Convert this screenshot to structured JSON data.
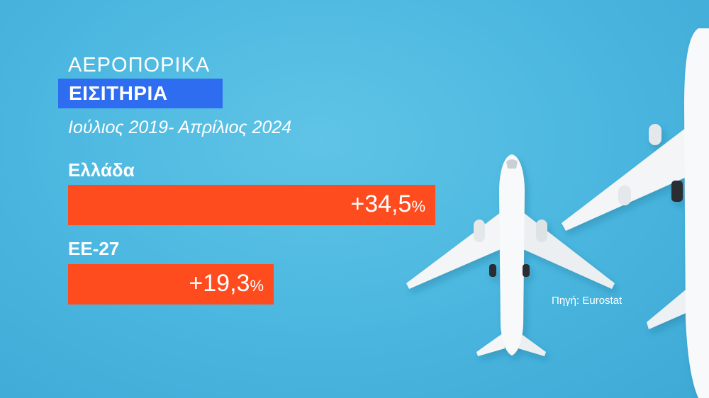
{
  "header": {
    "line1": "ΑΕΡΟΠΟΡΙΚΑ",
    "line2": "ΕΙΣΙΤΗΡΙΑ",
    "period": "Ιούλιος 2019- Απρίλιος 2024"
  },
  "chart_data": {
    "type": "bar",
    "orientation": "horizontal",
    "categories": [
      "Ελλάδα",
      "ΕΕ-27"
    ],
    "values": [
      34.5,
      19.3
    ],
    "value_labels": [
      {
        "number": "+34,5",
        "unit": "%"
      },
      {
        "number": "+19,3",
        "unit": "%"
      }
    ],
    "bar_color": "#ff4c1f"
  },
  "source": "Πηγή: Eurostat",
  "colors": {
    "background": "#4ab6df",
    "title_box": "#2f6df0",
    "bar": "#ff4c1f",
    "text": "#ffffff"
  }
}
